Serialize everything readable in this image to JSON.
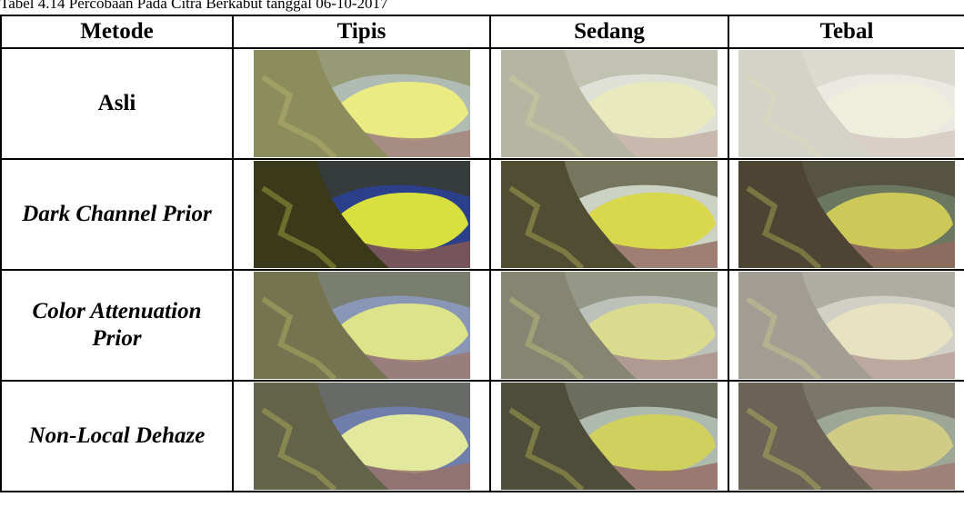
{
  "caption": "Tabel 4.14 Percobaan Pada Citra Berkabut tanggal 06-10-2017",
  "table": {
    "header": [
      "Metode",
      "Tipis",
      "Sedang",
      "Tebal"
    ],
    "rows": [
      [
        "Asli"
      ],
      [
        "Dark Channel Prior"
      ],
      [
        "Color Attenuation Prior"
      ],
      [
        "Non-Local Dehaze"
      ]
    ]
  }
}
